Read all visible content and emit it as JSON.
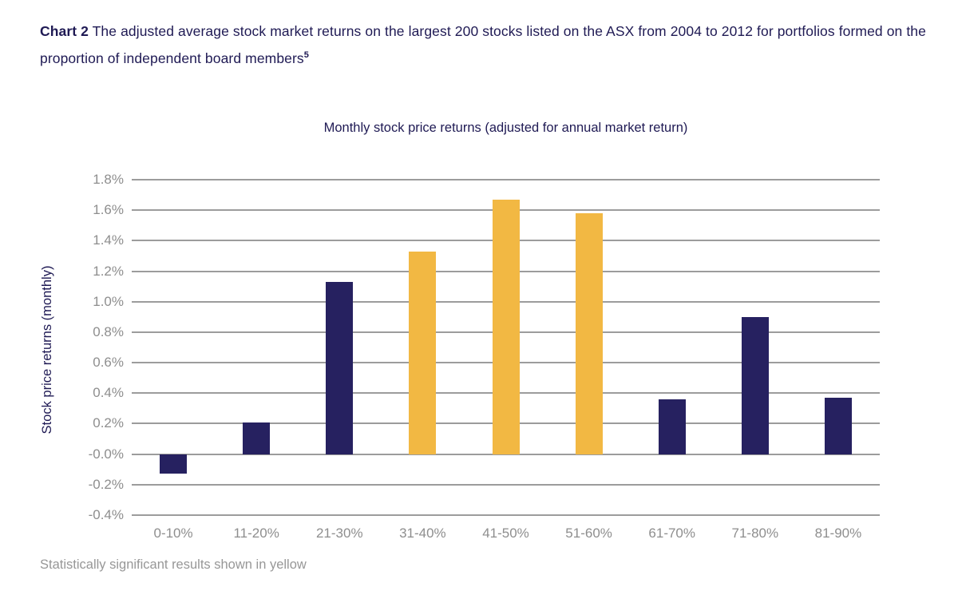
{
  "heading": {
    "prefix": "Chart 2",
    "text": " The adjusted average stock market returns on the largest 200 stocks listed on the ASX from 2004 to 2012 for portfolios formed on the proportion of independent board members",
    "superscript": "5"
  },
  "footnote": "Statistically significant results shown in yellow",
  "chart_data": {
    "type": "bar",
    "title": "Monthly stock price returns (adjusted for annual market return)",
    "ylabel": "Stock price returns (monthly)",
    "categories": [
      "0-10%",
      "11-20%",
      "21-30%",
      "31-40%",
      "41-50%",
      "51-60%",
      "61-70%",
      "71-80%",
      "81-90%"
    ],
    "values": [
      -0.13,
      0.21,
      1.13,
      1.33,
      1.67,
      1.58,
      0.36,
      0.9,
      0.37
    ],
    "significant": [
      false,
      false,
      false,
      true,
      true,
      true,
      false,
      false,
      false
    ],
    "ylim": [
      -0.4,
      1.8
    ],
    "ytick_step": 0.2,
    "ytick_labels": [
      "1.8%",
      "1.6%",
      "1.4%",
      "1.2%",
      "1.0%",
      "0.8%",
      "0.6%",
      "0.4%",
      "0.2%",
      "-0.0%",
      "-0.2%",
      "-0.4%"
    ],
    "legend_note": "significant bars shown in yellow",
    "grid": true,
    "colors": {
      "bar_default": "#262160",
      "bar_significant": "#F2B843",
      "gridline": "#9C9C9C",
      "tick_text": "#8E8E8E",
      "title_text": "#1F1A54"
    }
  }
}
